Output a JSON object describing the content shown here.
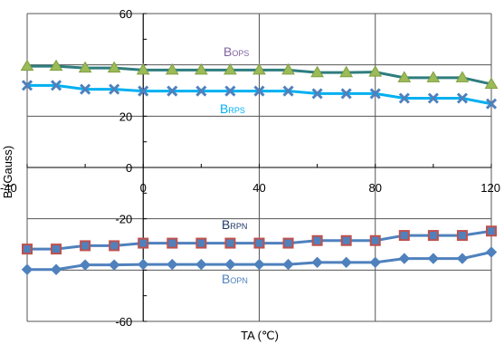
{
  "chart_data": {
    "type": "line",
    "xlabel": "TA (℃)",
    "ylabel": "B (Gauss)",
    "xlim": [
      -40,
      120
    ],
    "ylim": [
      -60,
      60
    ],
    "xticks": [
      -40,
      0,
      40,
      80,
      120
    ],
    "yticks": [
      60,
      20,
      0,
      -20,
      -60
    ],
    "x_tick_labels": [
      "-40",
      "0",
      "40",
      "80",
      "120"
    ],
    "y_tick_labels": [
      "60",
      "20",
      "0",
      "-20",
      "-60"
    ],
    "grid": true,
    "x": [
      -40,
      -30,
      -20,
      -10,
      0,
      10,
      20,
      30,
      40,
      50,
      60,
      70,
      80,
      90,
      100,
      110,
      120
    ],
    "series": [
      {
        "name": "BOPS",
        "label_main": "B",
        "label_sub": "OPS",
        "marker": "triangle",
        "line_color": "#2E7D7E",
        "marker_fill": "#9BBB59",
        "label_color": "#8064A2",
        "values": [
          39.5,
          39.5,
          38.8,
          38.8,
          38.0,
          38.0,
          38.0,
          38.0,
          38.0,
          38.0,
          37.0,
          37.0,
          37.2,
          35.0,
          35.0,
          35.0,
          32.5
        ]
      },
      {
        "name": "BRPS",
        "label_main": "B",
        "label_sub": "RPS",
        "marker": "x",
        "line_color": "#00B0F0",
        "marker_fill": "#4F81BD",
        "label_color": "#00B0F0",
        "values": [
          32.0,
          32.0,
          30.5,
          30.5,
          29.8,
          29.8,
          29.8,
          29.8,
          29.8,
          29.8,
          28.8,
          28.8,
          28.8,
          27.0,
          27.0,
          27.0,
          24.8
        ]
      },
      {
        "name": "BRPN",
        "label_main": "B",
        "label_sub": "RPN",
        "marker": "square",
        "line_color": "#4F81BD",
        "marker_fill": "#C0504D",
        "label_color": "#1F3864",
        "values": [
          -31.8,
          -31.8,
          -30.5,
          -30.5,
          -29.5,
          -29.5,
          -29.5,
          -29.5,
          -29.5,
          -29.5,
          -28.5,
          -28.5,
          -28.5,
          -26.5,
          -26.5,
          -26.5,
          -24.8
        ]
      },
      {
        "name": "BOPN",
        "label_main": "B",
        "label_sub": "OPN",
        "marker": "diamond",
        "line_color": "#4F81BD",
        "marker_fill": "#4F81BD",
        "label_color": "#4F81BD",
        "values": [
          -39.8,
          -39.8,
          -38.0,
          -38.0,
          -37.8,
          -37.8,
          -37.8,
          -37.8,
          -37.8,
          -37.8,
          -37.0,
          -37.0,
          -37.0,
          -35.5,
          -35.5,
          -35.5,
          -33.0
        ]
      }
    ]
  }
}
